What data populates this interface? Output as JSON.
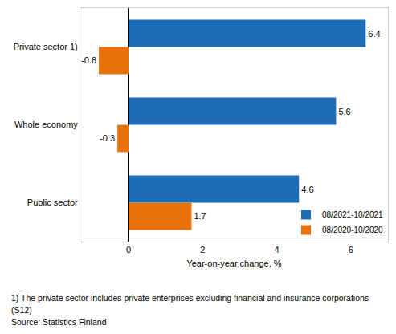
{
  "chart_data": {
    "type": "bar",
    "orientation": "horizontal",
    "categories": [
      "Private sector 1)",
      "Whole economy",
      "Public sector"
    ],
    "series": [
      {
        "name": "08/2021-10/2021",
        "color": "#1c6db5",
        "values": [
          6.4,
          5.6,
          4.6
        ]
      },
      {
        "name": "08/2020-10/2020",
        "color": "#e8710a",
        "values": [
          -0.8,
          -0.3,
          1.7
        ]
      }
    ],
    "x_label": "Year-on-year change, %",
    "xlim": [
      -1.3,
      7
    ],
    "xticks": [
      0,
      2,
      4,
      6
    ],
    "grid": false,
    "data_labels": true,
    "legend": "bottom-right",
    "annotations": [
      "1) The private sector includes private enterprises excluding financial and insurance corporations",
      "(S12)",
      "Source: Statistics Finland"
    ]
  }
}
